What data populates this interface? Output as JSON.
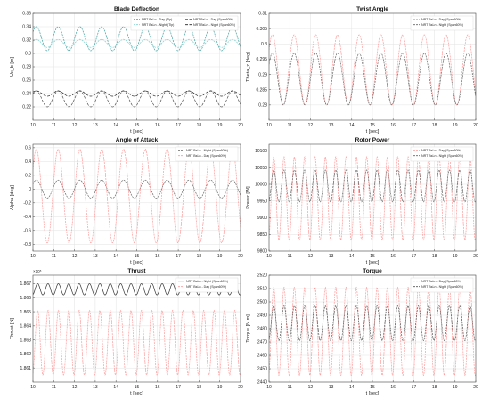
{
  "chart_data": [
    {
      "type": "line",
      "title": "Blade Deflection",
      "xlabel": "t [sec]",
      "ylabel": "Ux_b [m]",
      "xlim": [
        10,
        20
      ],
      "ylim": [
        0.2,
        0.36
      ],
      "xticks": [
        10,
        11,
        12,
        13,
        14,
        15,
        16,
        17,
        18,
        19,
        20
      ],
      "yticks": [
        0.22,
        0.24,
        0.26,
        0.28,
        0.3,
        0.32,
        0.34,
        0.36
      ],
      "ytick_labels": [
        "0.22",
        "0.24",
        "0.26",
        "0.28",
        "0.3",
        "0.32",
        "0.34",
        "0.36"
      ],
      "grid": true,
      "legend": {
        "position": "top-right",
        "columns": 2
      },
      "series": [
        {
          "name": "NRT BsLn - Day (Tip)",
          "color": "#40a0a0",
          "dash": "2,1",
          "mean": 0.322,
          "amp": 0.018,
          "period": 1.05,
          "phase": 1.5
        },
        {
          "name": "NRT BsLn - Night (Tip)",
          "color": "#80d0d0",
          "dash": "2,1",
          "mean": 0.315,
          "amp": 0.006,
          "period": 1.05,
          "phase": 1.5
        },
        {
          "name": "NRT BsLn - Day (Span60%)",
          "color": "#505050",
          "dash": "3,1.5",
          "mean": 0.232,
          "amp": 0.012,
          "period": 1.05,
          "phase": 1.5
        },
        {
          "name": "NRT BsLn - Night (Span60%)",
          "color": "#202020",
          "dash": "3,1.5",
          "mean": 0.24,
          "amp": 0.004,
          "period": 1.05,
          "phase": 1.5
        }
      ]
    },
    {
      "type": "line",
      "title": "Twist Angle",
      "xlabel": "t [sec]",
      "ylabel": "Theta_z [deg]",
      "xlim": [
        10,
        20
      ],
      "ylim": [
        0.275,
        0.31
      ],
      "xticks": [
        10,
        11,
        12,
        13,
        14,
        15,
        16,
        17,
        18,
        19,
        20
      ],
      "yticks": [
        0.28,
        0.285,
        0.29,
        0.295,
        0.3,
        0.305,
        0.31
      ],
      "ytick_labels": [
        "0.28",
        "0.285",
        "0.29",
        "0.295",
        "0.3",
        "0.305",
        "0.31"
      ],
      "grid": true,
      "legend": {
        "position": "top-right",
        "columns": 1
      },
      "series": [
        {
          "name": "NRT BsLn - Day (Span60%)",
          "color": "#ff9999",
          "dash": "2,1",
          "mean": 0.2915,
          "amp": 0.0115,
          "period": 1.05,
          "phase": 1.5
        },
        {
          "name": "NRT BsLn - Night (Span60%)",
          "color": "#666666",
          "dash": "2,1",
          "mean": 0.2885,
          "amp": 0.0085,
          "period": 1.05,
          "phase": 1.5
        }
      ]
    },
    {
      "type": "line",
      "title": "Angle of Attack",
      "xlabel": "t [sec]",
      "ylabel": "Alpha [deg]",
      "xlim": [
        10,
        20
      ],
      "ylim": [
        -0.9,
        0.65
      ],
      "xticks": [
        10,
        11,
        12,
        13,
        14,
        15,
        16,
        17,
        18,
        19,
        20
      ],
      "yticks": [
        -0.8,
        -0.6,
        -0.4,
        -0.2,
        0,
        0.2,
        0.4,
        0.6
      ],
      "ytick_labels": [
        "-0.8",
        "-0.6",
        "-0.4",
        "-0.2",
        "0",
        "0.2",
        "0.4",
        "0.6"
      ],
      "grid": true,
      "legend": {
        "position": "top-right",
        "columns": 1
      },
      "series": [
        {
          "name": "NRT BsLn - Night (Span60%)",
          "color": "#666666",
          "dash": "2,1",
          "mean": 0.0,
          "amp": 0.13,
          "period": 1.05,
          "phase": 1.5
        },
        {
          "name": "NRT BsLn - Day (Span60%)",
          "color": "#ff9999",
          "dash": "2,1",
          "mean": -0.1,
          "amp": 0.68,
          "period": 1.05,
          "phase": 1.5
        }
      ]
    },
    {
      "type": "line",
      "title": "Rotor Power",
      "xlabel": "t [sec]",
      "ylabel": "Power [W]",
      "xlim": [
        10,
        20
      ],
      "ylim": [
        9800,
        10120
      ],
      "xticks": [
        10,
        11,
        12,
        13,
        14,
        15,
        16,
        17,
        18,
        19,
        20
      ],
      "yticks": [
        9800,
        9850,
        9900,
        9950,
        10000,
        10050,
        10100
      ],
      "ytick_labels": [
        "9800",
        "9850",
        "9900",
        "9950",
        "10000",
        "10050",
        "10100"
      ],
      "grid": true,
      "legend": {
        "position": "top-right",
        "columns": 1
      },
      "series": [
        {
          "name": "NRT BsLn - Day (Span60%)",
          "color": "#ff9999",
          "dash": "2,1",
          "mean": 9958,
          "amp": 125,
          "period": 0.5,
          "phase": 0.6
        },
        {
          "name": "NRT BsLn - Night (Span60%)",
          "color": "#666666",
          "dash": "2,1",
          "mean": 9995,
          "amp": 48,
          "period": 0.5,
          "phase": 0.6
        }
      ]
    },
    {
      "type": "line",
      "title": "Thrust",
      "xlabel": "t [sec]",
      "ylabel": "Thrust [N]",
      "xlim": [
        10,
        20
      ],
      "ylim": [
        1.86,
        1.8676
      ],
      "axis_multiplier": "×10⁵",
      "xticks": [
        10,
        11,
        12,
        13,
        14,
        15,
        16,
        17,
        18,
        19,
        20
      ],
      "yticks": [
        1.861,
        1.862,
        1.863,
        1.864,
        1.865,
        1.866,
        1.867
      ],
      "ytick_labels": [
        "1.861",
        "1.862",
        "1.863",
        "1.864",
        "1.865",
        "1.866",
        "1.867"
      ],
      "grid": true,
      "legend": {
        "position": "top-right",
        "columns": 1
      },
      "series": [
        {
          "name": "NRT BsLn - Night (Span60%)",
          "color": "#333333",
          "dash": "",
          "mean": 1.8666,
          "amp": 0.0004,
          "period": 0.5,
          "phase": 0.6
        },
        {
          "name": "NRT BsLn - Day (Span60%)",
          "color": "#ff9999",
          "dash": "2,1",
          "mean": 1.8628,
          "amp": 0.0023,
          "period": 0.5,
          "phase": 0.6
        }
      ]
    },
    {
      "type": "line",
      "title": "Torque",
      "xlabel": "t [sec]",
      "ylabel": "Torque [N.m]",
      "xlim": [
        10,
        20
      ],
      "ylim": [
        2440,
        2520
      ],
      "xticks": [
        10,
        11,
        12,
        13,
        14,
        15,
        16,
        17,
        18,
        19,
        20
      ],
      "yticks": [
        2440,
        2450,
        2460,
        2470,
        2480,
        2490,
        2500,
        2510,
        2520
      ],
      "ytick_labels": [
        "2440",
        "2450",
        "2460",
        "2470",
        "2480",
        "2490",
        "2500",
        "2510",
        "2520"
      ],
      "grid": true,
      "legend": {
        "position": "top-right",
        "columns": 1
      },
      "series": [
        {
          "name": "NRT BsLn - Day (Span60%)",
          "color": "#ff9999",
          "dash": "2,1",
          "mean": 2478,
          "amp": 33,
          "period": 0.5,
          "phase": 0.6
        },
        {
          "name": "NRT BsLn - Night (Span60%)",
          "color": "#555555",
          "dash": "2,1",
          "mean": 2484,
          "amp": 13,
          "period": 0.5,
          "phase": 0.6
        }
      ]
    }
  ]
}
